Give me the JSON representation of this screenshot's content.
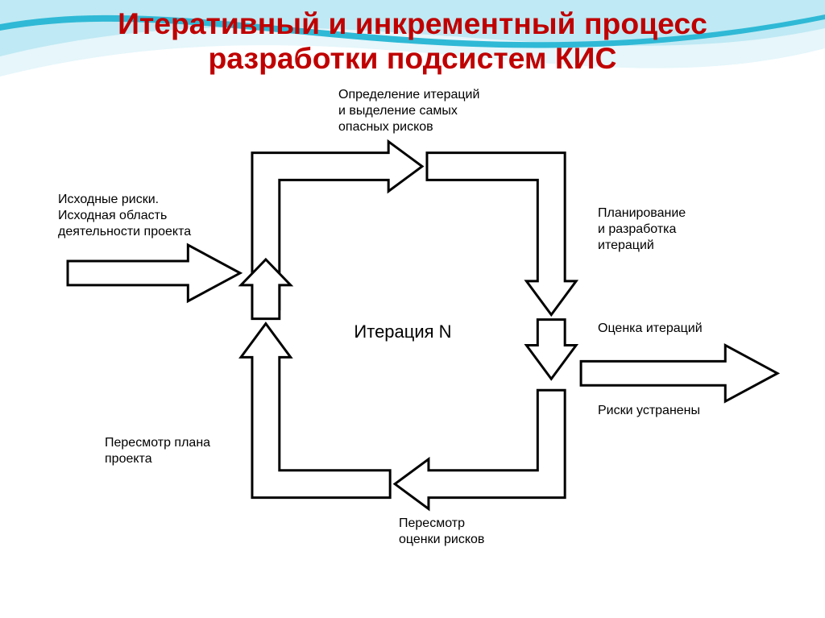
{
  "title": {
    "line1": "Итеративный и инкрементный процесс",
    "line2": "разработки подсистем КИС",
    "color": "#c00000",
    "fontsize_pt": 28
  },
  "background": {
    "page_color": "#ffffff",
    "wave_light": "#e6f6fb",
    "wave_mid": "#bfe9f4",
    "wave_accent": "#2fb9d6"
  },
  "diagram": {
    "type": "flowchart",
    "stroke_color": "#000000",
    "fill_color": "#ffffff",
    "stroke_width": 3,
    "label_fontsize_pt": 16,
    "center_fontsize_pt": 22,
    "center_label": "Итерация N",
    "labels": {
      "input": "Исходные риски.\nИсходная область\nдеятельности проекта",
      "top": "Определение итераций\nи выделение самых\nопасных рисков",
      "right1": "Планирование\nи разработка\nитераций",
      "right2": "Оценка итераций",
      "output": "Риски устранены",
      "bottom": "Пересмотр\nоценки рисков",
      "left_bottom": "Пересмотр плана\nпроекта"
    }
  }
}
